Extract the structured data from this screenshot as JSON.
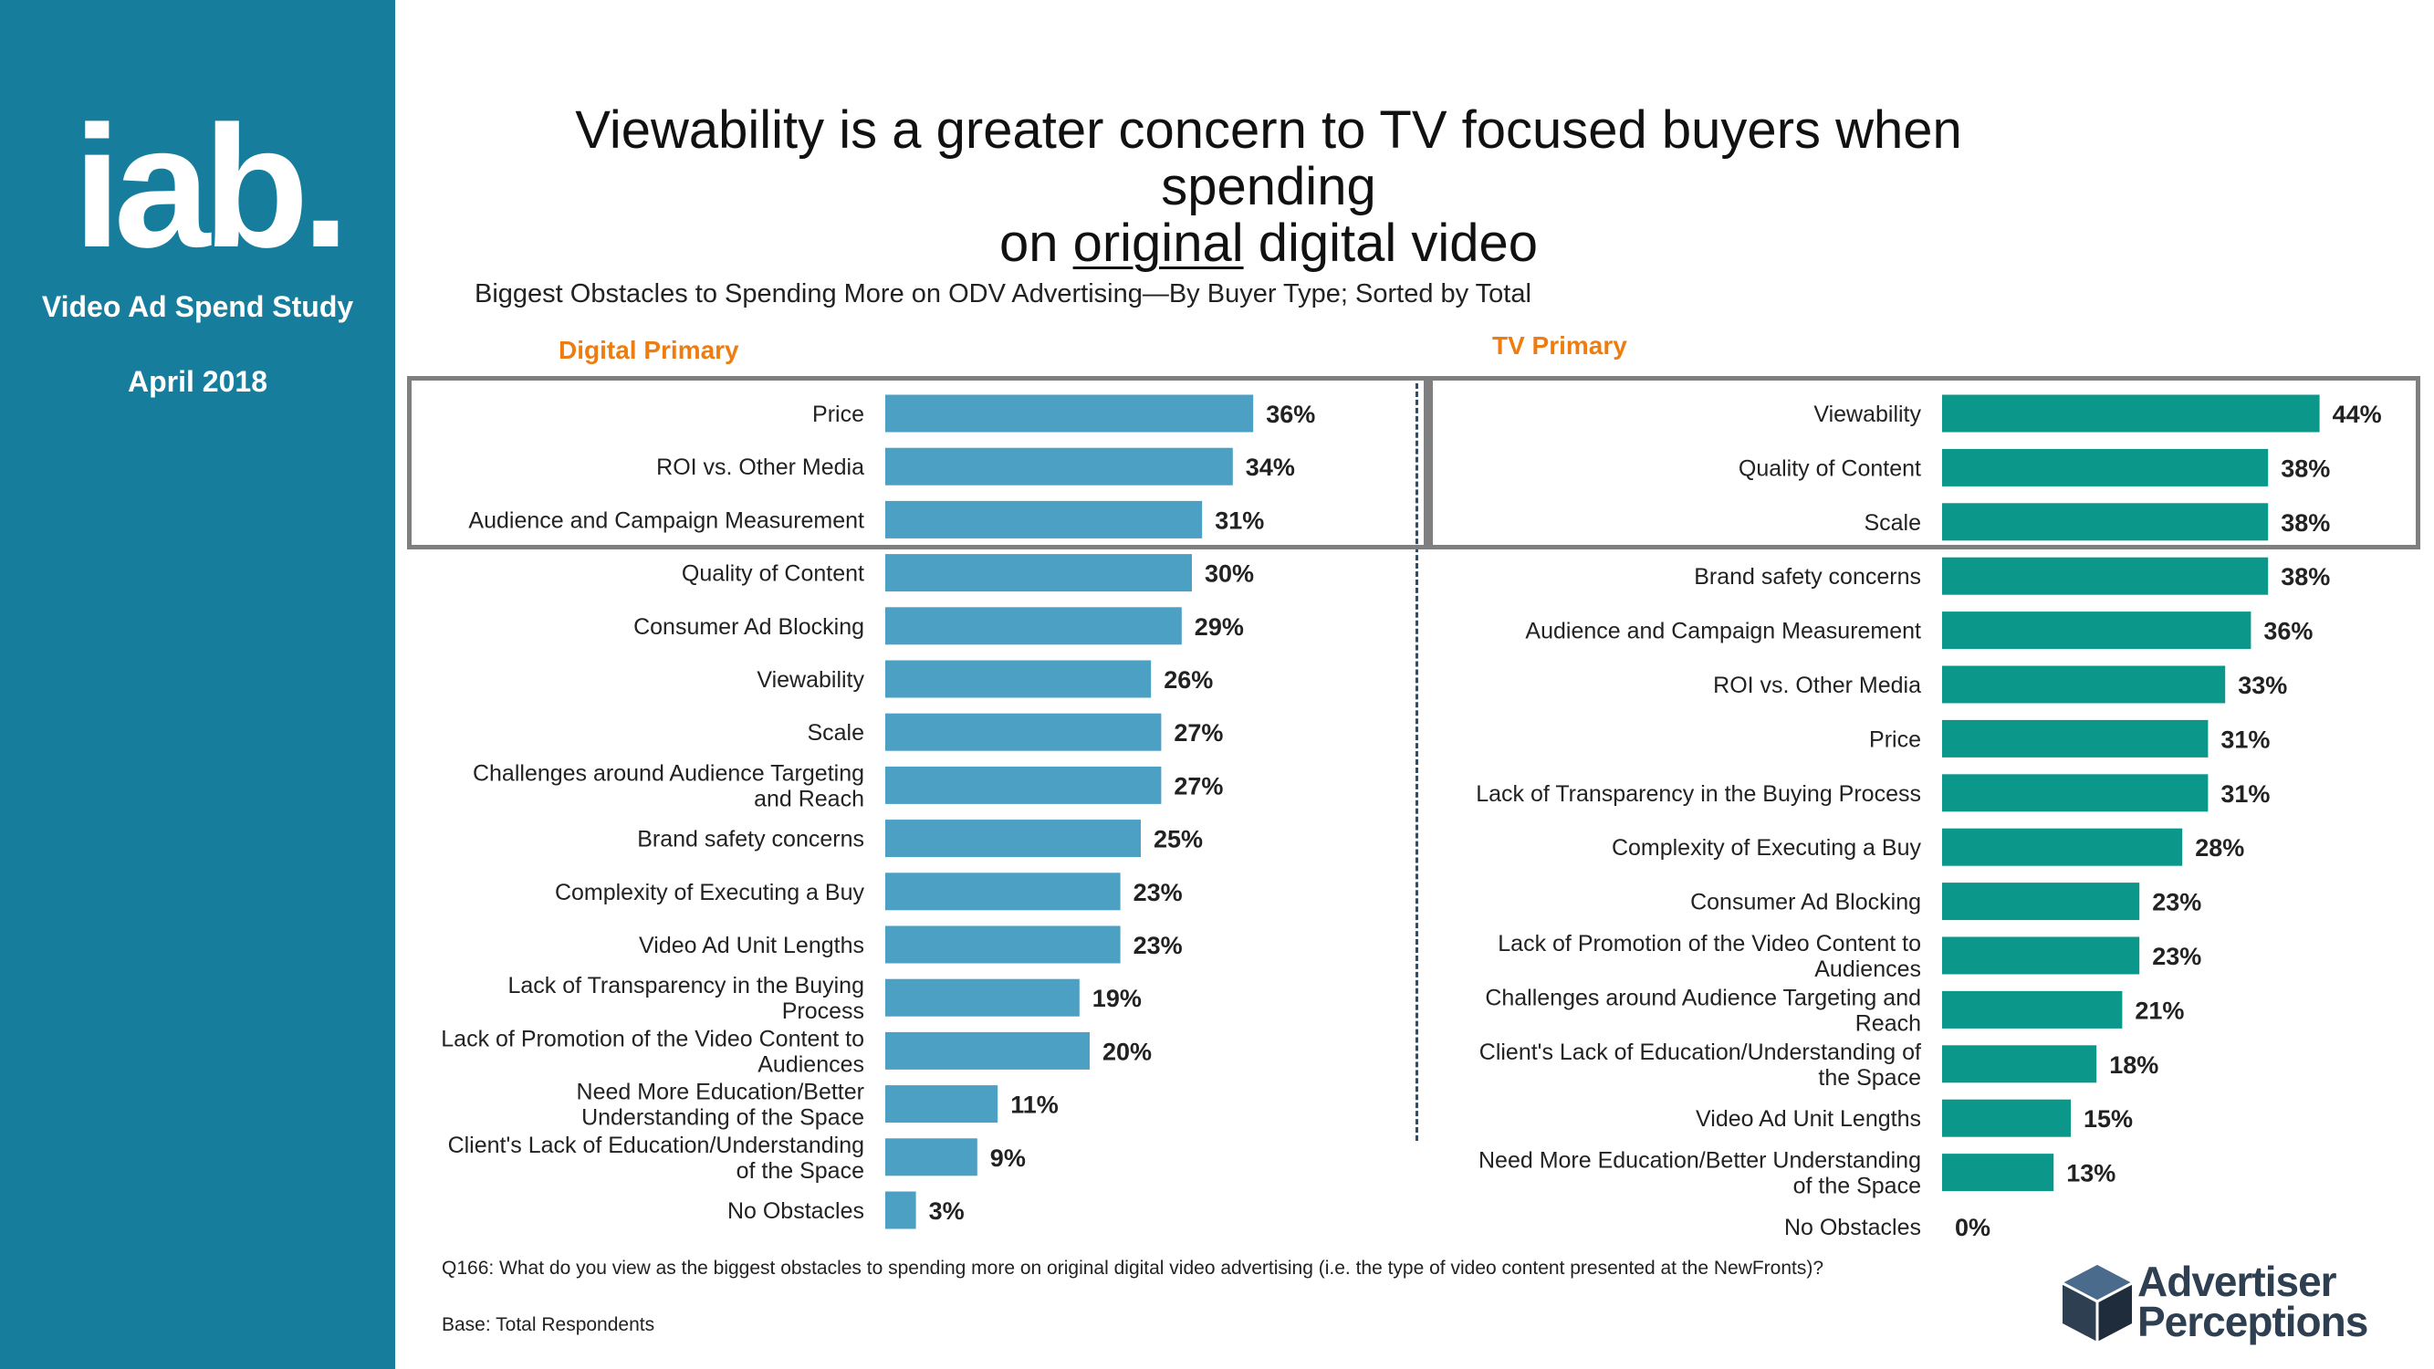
{
  "sidebar": {
    "logo_text": "iab.",
    "study": "Video Ad Spend Study",
    "date": "April 2018"
  },
  "title": {
    "line1": "Viewability is a greater concern to TV focused buyers when spending",
    "line2_pre": "on ",
    "line2_underlined": "original",
    "line2_post": " digital video"
  },
  "subtitle": "Biggest Obstacles to Spending More on ODV Advertising—By Buyer Type;  Sorted by Total",
  "colors": {
    "sidebar": "#167e9c",
    "digital_bar": "#4ba0c4",
    "tv_bar": "#0b978a",
    "heading": "#ee7d11",
    "box": "#7f7f7f"
  },
  "chart_data": [
    {
      "type": "bar",
      "orientation": "horizontal",
      "title": "Digital Primary",
      "unit": "%",
      "xlim": [
        0,
        50
      ],
      "highlighted_top": 3,
      "categories": [
        [
          "Price"
        ],
        [
          "ROI vs. Other Media"
        ],
        [
          "Audience and Campaign Measurement"
        ],
        [
          "Quality of Content"
        ],
        [
          "Consumer Ad Blocking"
        ],
        [
          "Viewability"
        ],
        [
          "Scale"
        ],
        [
          "Challenges around Audience Targeting",
          "and Reach"
        ],
        [
          "Brand safety concerns"
        ],
        [
          "Complexity of Executing a Buy"
        ],
        [
          "Video Ad Unit Lengths"
        ],
        [
          "Lack of Transparency in the Buying",
          "Process"
        ],
        [
          "Lack of Promotion of the Video Content to",
          "Audiences"
        ],
        [
          "Need More Education/Better",
          "Understanding of the Space"
        ],
        [
          "Client's Lack of Education/Understanding",
          "of the Space"
        ],
        [
          "No Obstacles"
        ]
      ],
      "values": [
        36,
        34,
        31,
        30,
        29,
        26,
        27,
        27,
        25,
        23,
        23,
        19,
        20,
        11,
        9,
        3
      ],
      "labels": [
        "36%",
        "34%",
        "31%",
        "30%",
        "29%",
        "26%",
        "27%",
        "27%",
        "25%",
        "23%",
        "23%",
        "19%",
        "20%",
        "11%",
        "9%",
        "3%"
      ]
    },
    {
      "type": "bar",
      "orientation": "horizontal",
      "title": "TV Primary",
      "unit": "%",
      "xlim": [
        0,
        50
      ],
      "highlighted_top": 3,
      "categories": [
        [
          "Viewability"
        ],
        [
          "Quality of Content"
        ],
        [
          "Scale"
        ],
        [
          "Brand safety concerns"
        ],
        [
          "Audience and Campaign Measurement"
        ],
        [
          "ROI vs. Other Media"
        ],
        [
          "Price"
        ],
        [
          "Lack of Transparency in the Buying Process"
        ],
        [
          "Complexity of Executing a Buy"
        ],
        [
          "Consumer Ad Blocking"
        ],
        [
          "Lack of Promotion of the Video Content to",
          "Audiences"
        ],
        [
          "Challenges around Audience Targeting and",
          "Reach"
        ],
        [
          "Client's Lack of Education/Understanding of",
          "the Space"
        ],
        [
          "Video Ad Unit Lengths"
        ],
        [
          "Need More Education/Better Understanding",
          "of the Space"
        ],
        [
          "No Obstacles"
        ]
      ],
      "values": [
        44,
        38,
        38,
        38,
        36,
        33,
        31,
        31,
        28,
        23,
        23,
        21,
        18,
        15,
        13,
        0
      ],
      "labels": [
        "44%",
        "38%",
        "38%",
        "38%",
        "36%",
        "33%",
        "31%",
        "31%",
        "28%",
        "23%",
        "23%",
        "21%",
        "18%",
        "15%",
        "13%",
        "0%"
      ]
    }
  ],
  "footnote": "Q166:  What do you view as the biggest obstacles to spending more on original digital video advertising (i.e. the type of video content presented at the NewFronts)?",
  "base": "Base: Total Respondents",
  "brand": {
    "line1": "Advertiser",
    "line2": "Perceptions"
  }
}
